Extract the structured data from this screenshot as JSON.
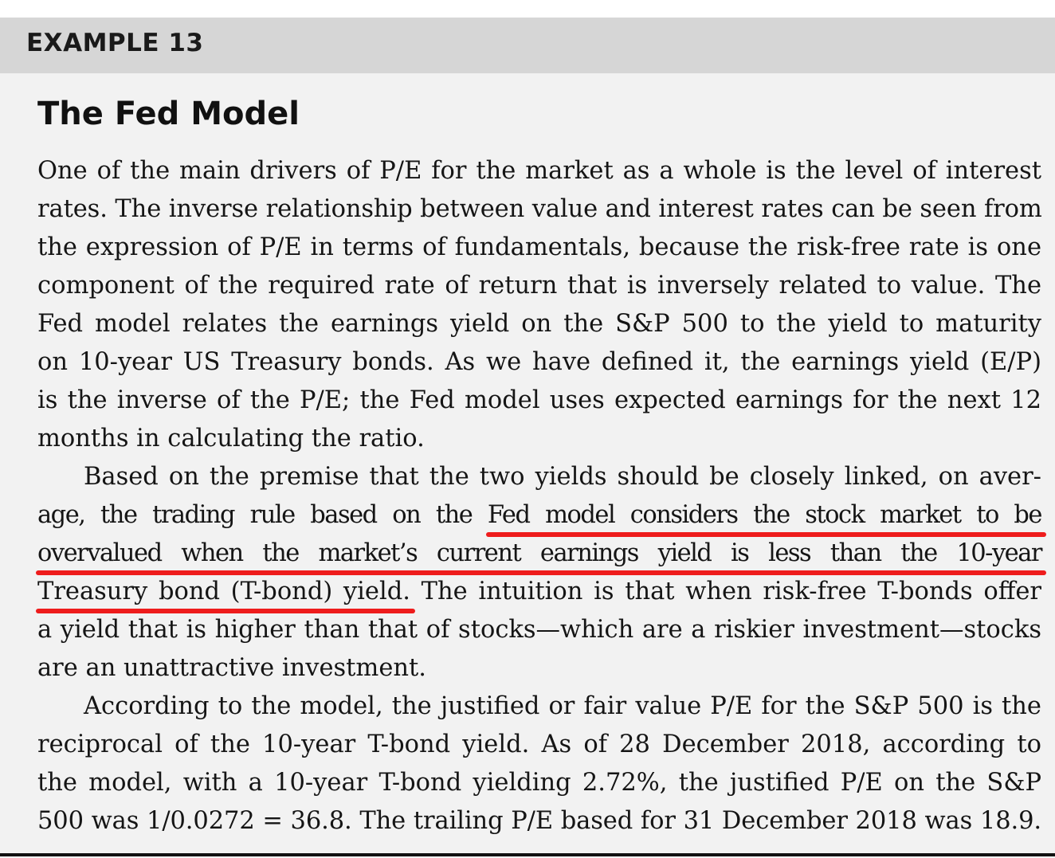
{
  "box": {
    "label": "EXAMPLE 13",
    "title": "The Fed Model"
  },
  "highlight_color": "#ee1c1c",
  "paragraphs": [
    {
      "lines": [
        "One of the main drivers of P/E for the market as a whole is the level of interest",
        "rates. The inverse relationship between value and interest rates can be seen from",
        "the expression of P/E in terms of fundamentals, because the risk-free rate is one",
        "component of the required rate of return that is inversely related to value. The",
        "Fed model relates the earnings yield on the S&P 500 to the yield to maturity",
        "on 10-year US Treasury bonds. As we have defined it, the earnings yield (E/P)",
        "is the inverse of the P/E; the Fed model uses expected earnings for the next 12",
        "months in calculating the ratio."
      ]
    },
    {
      "line1": "Based on the premise that the two yields should be closely linked, on aver-",
      "line2_pre": "age, the trading rule based on the ",
      "line2_mark": "Fed model considers the stock market to be",
      "line3_mark": "overvalued when the market’s current earnings yield is less than the 10-year",
      "line4_mark": "Treasury bond (T-bond) yield.",
      "line4_post": " The intuition is that when risk-free T-bonds offer",
      "line5": "a yield that is higher than that of stocks—which are a riskier investment—stocks",
      "line6": "are an unattractive investment."
    },
    {
      "lines": [
        "According to the model, the justified or fair value P/E for the S&P 500 is the",
        "reciprocal of the 10-year T-bond yield. As of 28 December 2018, according to",
        "the model, with a 10-year T-bond yielding 2.72%, the justified P/E on the S&P",
        "500 was 1/0.0272 = 36.8. The trailing P/E based for 31 December 2018 was 18.9."
      ]
    }
  ]
}
